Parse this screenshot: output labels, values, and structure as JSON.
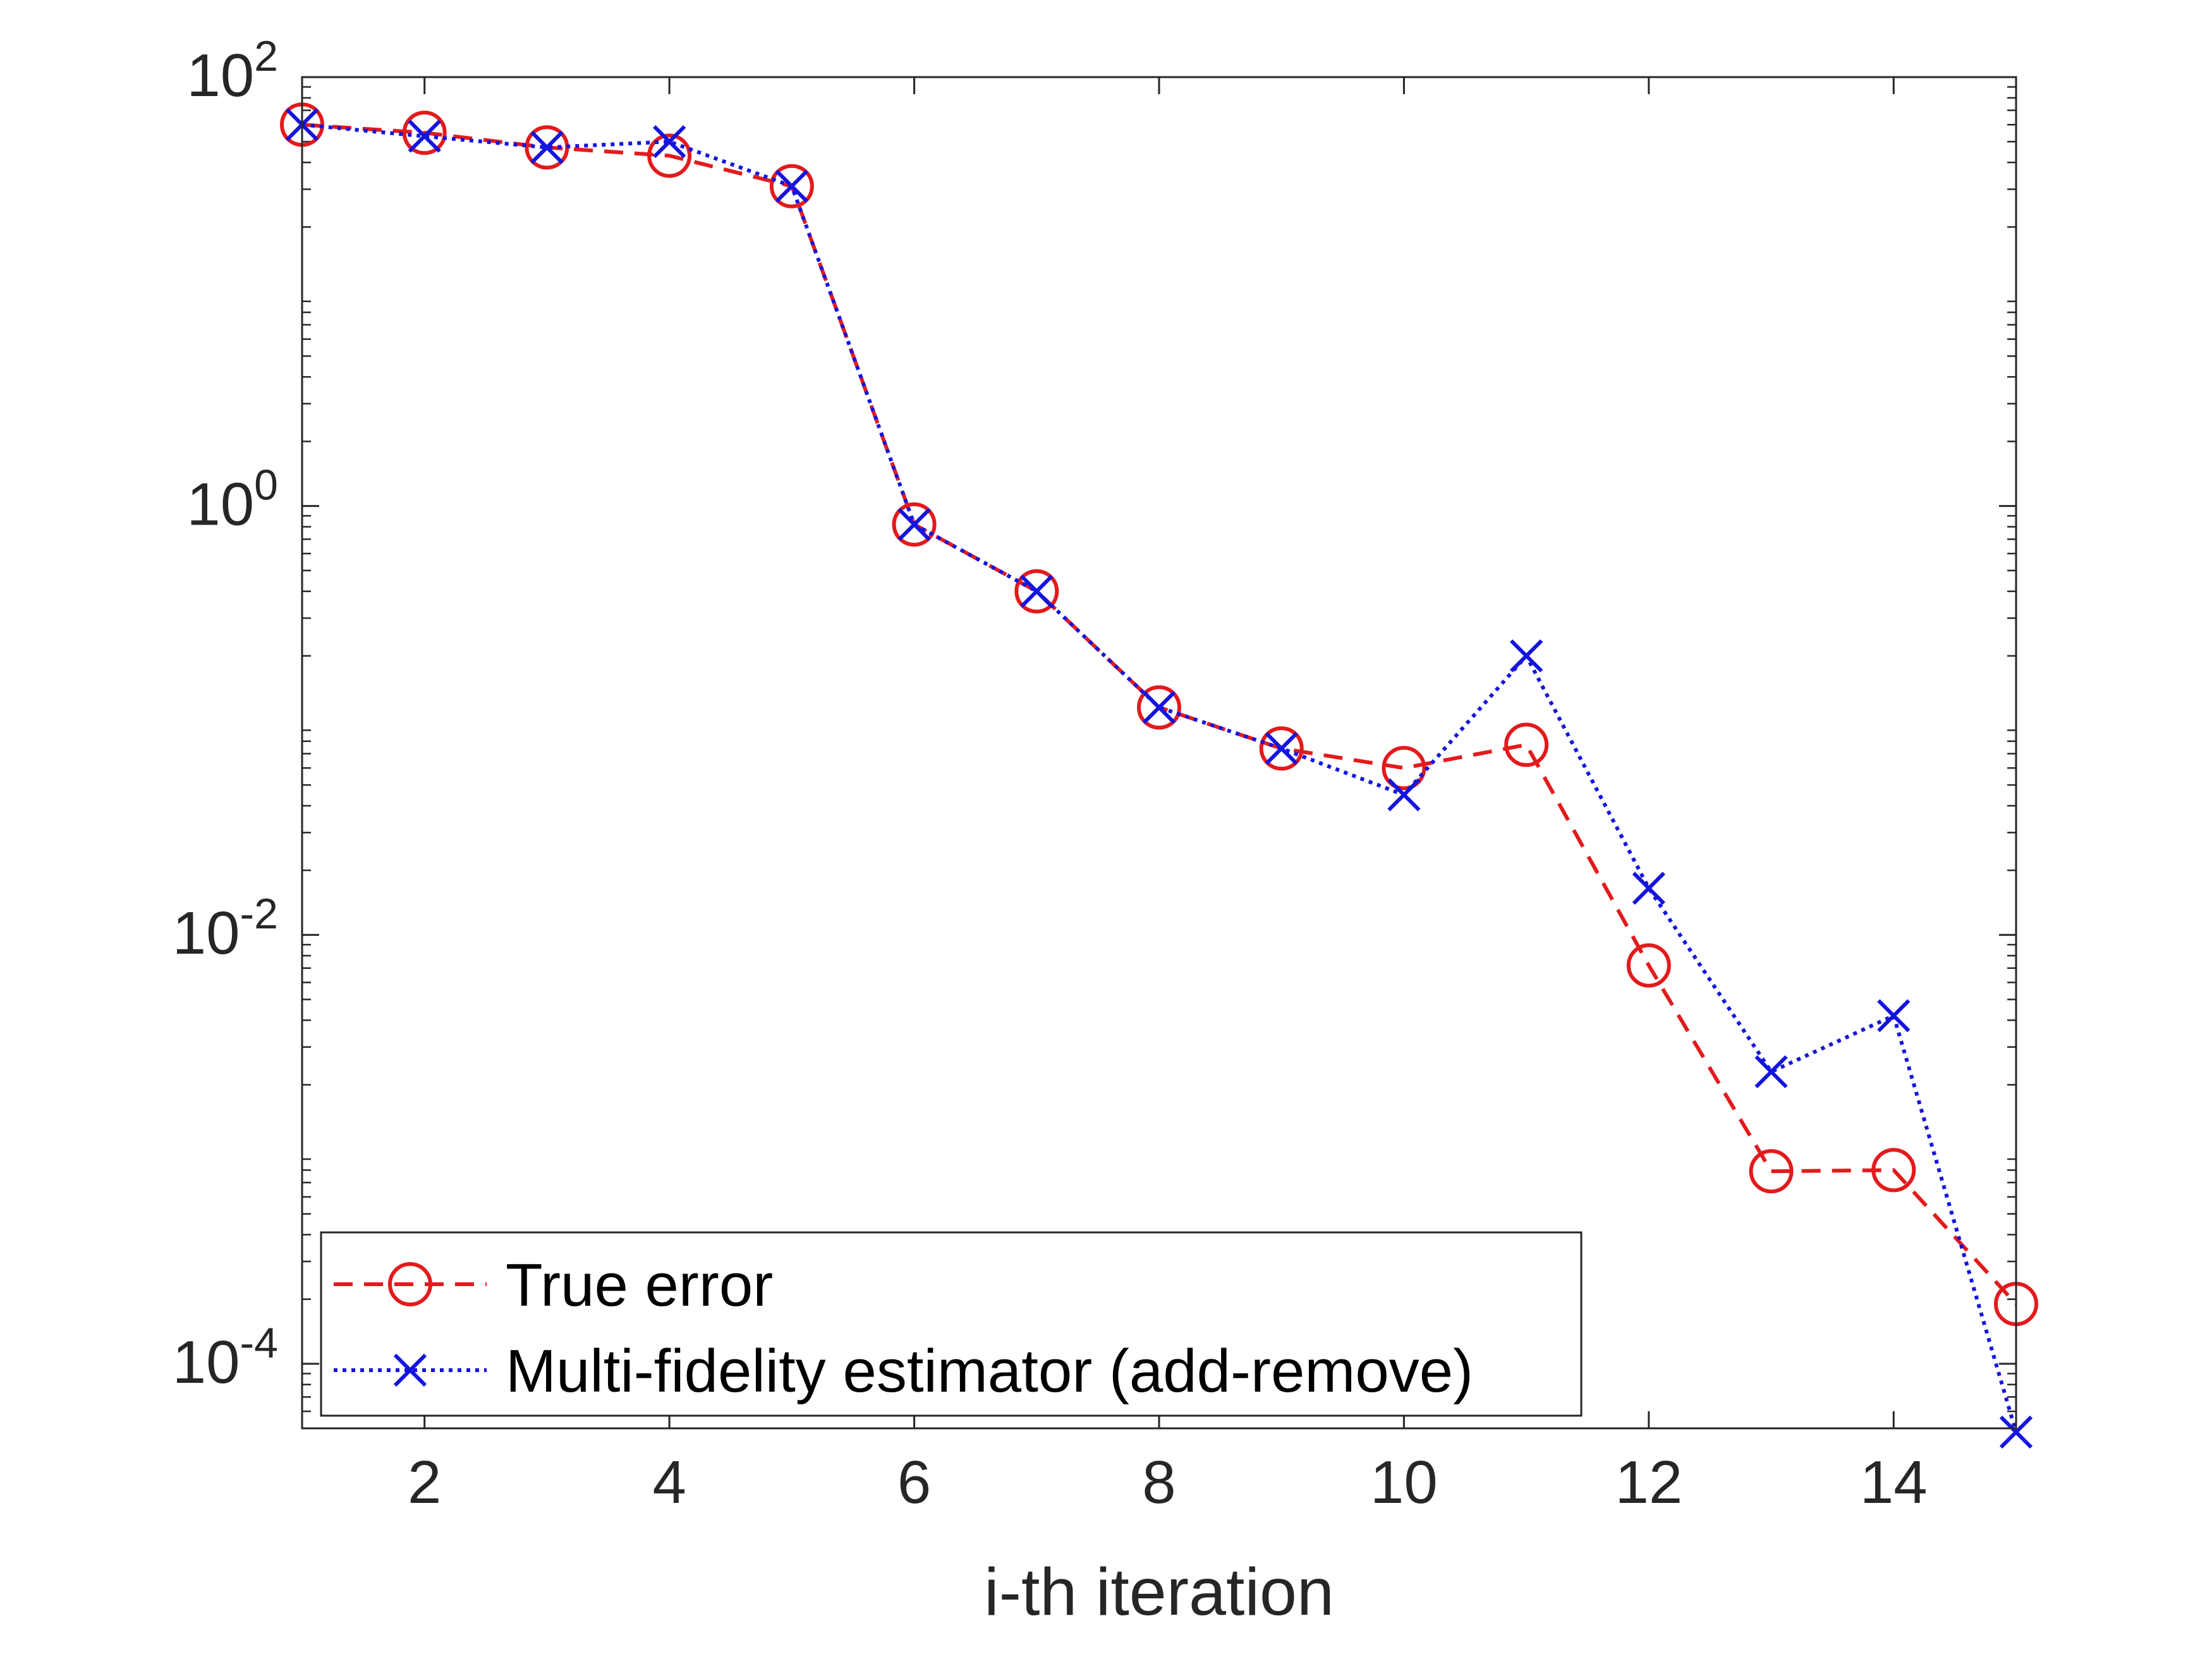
{
  "chart_data": {
    "type": "line",
    "title": "",
    "xlabel": "i-th iteration",
    "ylabel": "",
    "yscale": "log",
    "xlim": [
      1,
      15
    ],
    "ylim": [
      5e-05,
      100
    ],
    "x": [
      1,
      2,
      3,
      4,
      5,
      6,
      7,
      8,
      9,
      10,
      11,
      12,
      13,
      14,
      15
    ],
    "xticks": [
      2,
      4,
      6,
      8,
      10,
      12,
      14
    ],
    "xtick_labels": [
      "2",
      "4",
      "6",
      "8",
      "10",
      "12",
      "14"
    ],
    "yticks": [
      0.0001,
      0.01,
      1,
      100
    ],
    "ytick_labels": [
      {
        "base": "10",
        "exp": "-4"
      },
      {
        "base": "10",
        "exp": "-2"
      },
      {
        "base": "10",
        "exp": "0"
      },
      {
        "base": "10",
        "exp": "2"
      }
    ],
    "series": [
      {
        "name": "True error",
        "color": "#e31a1c",
        "line_style": "dashed",
        "marker": "circle",
        "values": [
          60,
          55,
          47,
          43,
          31,
          0.82,
          0.4,
          0.115,
          0.074,
          0.06,
          0.077,
          0.0072,
          0.00079,
          0.0008,
          0.00019
        ]
      },
      {
        "name": "Multi-fidelity estimator (add-remove)",
        "color": "#1414e0",
        "line_style": "dotted",
        "marker": "x",
        "values": [
          60,
          53,
          47,
          50,
          31,
          0.82,
          0.4,
          0.115,
          0.074,
          0.045,
          0.2,
          0.0165,
          0.0023,
          0.0042,
          4.8e-05
        ]
      }
    ],
    "legend_position": "bottom-left",
    "grid": false
  }
}
